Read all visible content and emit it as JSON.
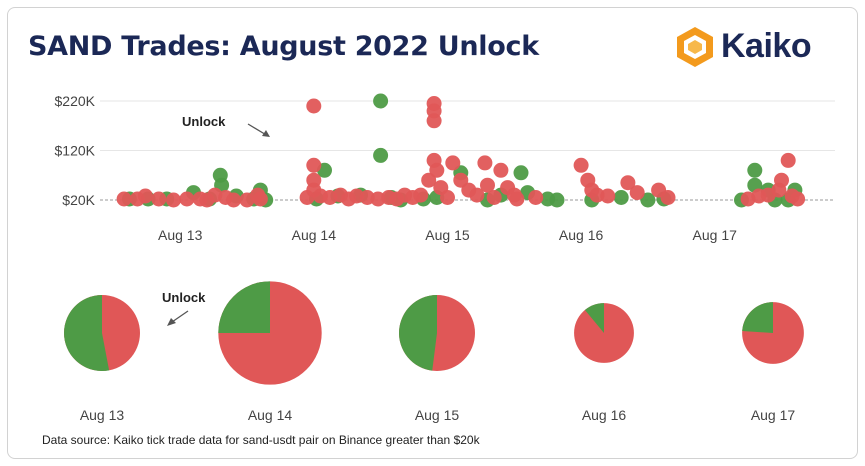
{
  "title": "SAND Trades: August 2022 Unlock",
  "logo": {
    "text": "Kaiko",
    "icon": "kaiko-logo-icon"
  },
  "footer": "Data source: Kaiko tick trade data for sand-usdt pair on Binance greater than $20k",
  "colors": {
    "buy": "#4e9b46",
    "sell": "#e05757",
    "title": "#1b2856"
  },
  "chart_data": [
    {
      "type": "scatter",
      "title": "SAND Trades: August 2022 Unlock",
      "y_ticks": [
        "$220K",
        "$120K",
        "$20K"
      ],
      "y_tick_values": [
        220,
        120,
        20
      ],
      "ylim": [
        20,
        220
      ],
      "x_ticks": [
        "Aug 13",
        "Aug 14",
        "Aug 15",
        "Aug 16",
        "Aug 17"
      ],
      "x_tick_values": [
        13.0,
        14.0,
        15.0,
        16.0,
        17.0
      ],
      "xlim": [
        12.4,
        17.9
      ],
      "y_unit": "$K",
      "annotation": "Unlock",
      "grid": true,
      "series": [
        {
          "color": "#4e9b46",
          "points": [
            [
              12.62,
              22
            ],
            [
              12.76,
              22
            ],
            [
              12.9,
              22
            ],
            [
              13.1,
              35
            ],
            [
              13.22,
              22
            ],
            [
              13.3,
              70
            ],
            [
              13.31,
              50
            ],
            [
              13.42,
              28
            ],
            [
              13.55,
              22
            ],
            [
              13.6,
              40
            ],
            [
              13.64,
              20
            ],
            [
              14.02,
              22
            ],
            [
              14.08,
              80
            ],
            [
              14.18,
              28
            ],
            [
              14.35,
              30
            ],
            [
              14.5,
              220
            ],
            [
              14.5,
              110
            ],
            [
              14.58,
              25
            ],
            [
              14.65,
              20
            ],
            [
              14.82,
              22
            ],
            [
              14.92,
              25
            ],
            [
              15.1,
              75
            ],
            [
              15.3,
              20
            ],
            [
              15.4,
              30
            ],
            [
              15.55,
              75
            ],
            [
              15.6,
              35
            ],
            [
              15.75,
              22
            ],
            [
              15.82,
              20
            ],
            [
              16.08,
              20
            ],
            [
              16.3,
              25
            ],
            [
              16.5,
              20
            ],
            [
              16.62,
              22
            ],
            [
              17.2,
              20
            ],
            [
              17.3,
              80
            ],
            [
              17.3,
              50
            ],
            [
              17.4,
              40
            ],
            [
              17.45,
              20
            ],
            [
              17.55,
              20
            ],
            [
              17.6,
              40
            ]
          ]
        },
        {
          "color": "#e05757",
          "points": [
            [
              12.58,
              22
            ],
            [
              12.68,
              22
            ],
            [
              12.74,
              28
            ],
            [
              12.84,
              22
            ],
            [
              12.95,
              20
            ],
            [
              13.05,
              22
            ],
            [
              13.15,
              22
            ],
            [
              13.2,
              20
            ],
            [
              13.26,
              30
            ],
            [
              13.34,
              25
            ],
            [
              13.4,
              20
            ],
            [
              13.5,
              20
            ],
            [
              13.58,
              30
            ],
            [
              13.6,
              22
            ],
            [
              13.95,
              25
            ],
            [
              14.0,
              210
            ],
            [
              14.0,
              90
            ],
            [
              14.0,
              60
            ],
            [
              14.0,
              40
            ],
            [
              14.05,
              28
            ],
            [
              14.12,
              25
            ],
            [
              14.2,
              30
            ],
            [
              14.26,
              22
            ],
            [
              14.32,
              28
            ],
            [
              14.4,
              25
            ],
            [
              14.48,
              22
            ],
            [
              14.56,
              25
            ],
            [
              14.62,
              22
            ],
            [
              14.68,
              30
            ],
            [
              14.74,
              25
            ],
            [
              14.8,
              30
            ],
            [
              14.86,
              60
            ],
            [
              14.9,
              200
            ],
            [
              14.9,
              215
            ],
            [
              14.9,
              180
            ],
            [
              14.9,
              100
            ],
            [
              14.92,
              80
            ],
            [
              14.95,
              45
            ],
            [
              15.0,
              25
            ],
            [
              15.04,
              95
            ],
            [
              15.1,
              60
            ],
            [
              15.16,
              40
            ],
            [
              15.22,
              30
            ],
            [
              15.28,
              95
            ],
            [
              15.3,
              50
            ],
            [
              15.35,
              25
            ],
            [
              15.4,
              80
            ],
            [
              15.45,
              45
            ],
            [
              15.5,
              30
            ],
            [
              15.52,
              22
            ],
            [
              15.66,
              25
            ],
            [
              16.0,
              90
            ],
            [
              16.05,
              60
            ],
            [
              16.08,
              40
            ],
            [
              16.12,
              30
            ],
            [
              16.2,
              28
            ],
            [
              16.35,
              55
            ],
            [
              16.42,
              35
            ],
            [
              16.58,
              40
            ],
            [
              16.65,
              25
            ],
            [
              17.25,
              22
            ],
            [
              17.33,
              28
            ],
            [
              17.4,
              30
            ],
            [
              17.48,
              40
            ],
            [
              17.5,
              60
            ],
            [
              17.55,
              100
            ],
            [
              17.58,
              28
            ],
            [
              17.62,
              22
            ]
          ]
        }
      ]
    },
    {
      "type": "pie",
      "annotation": "Unlock",
      "categories": [
        "Aug 13",
        "Aug 14",
        "Aug 15",
        "Aug 16",
        "Aug 17"
      ],
      "green_share": [
        0.53,
        0.25,
        0.48,
        0.11,
        0.24
      ],
      "total_relative": [
        1.0,
        1.85,
        1.0,
        0.62,
        0.66
      ]
    }
  ]
}
